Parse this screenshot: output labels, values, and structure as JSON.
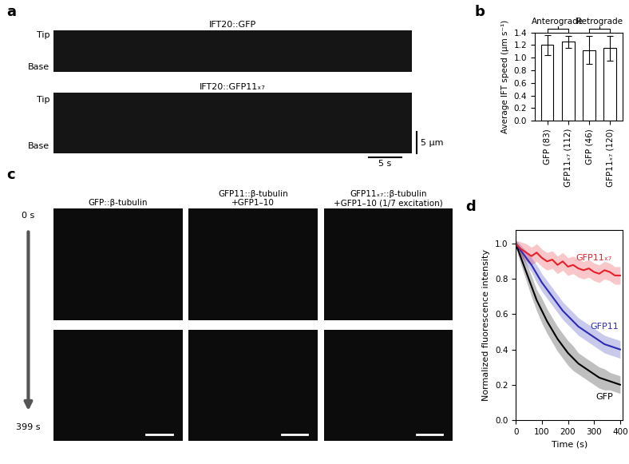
{
  "panel_labels": [
    "a",
    "b",
    "c",
    "d"
  ],
  "kymographs": {
    "rows": [
      "IFT20::GFP",
      "IFT20::GFP11ₓ₇"
    ],
    "tip_label": "Tip",
    "base_label": "Base",
    "scale_bar_length": "5 µm",
    "scale_bar_time": "5 s"
  },
  "photobleaching_images": {
    "columns": [
      "GFP::β-tubulin",
      "GFP11::β-tubulin\n+GFP1–10",
      "GFP11ₓ₇::β-tubulin\n+GFP1–10 (1/7 excitation)"
    ],
    "times": [
      "0 s",
      "399 s"
    ]
  },
  "chart_data": [
    {
      "type": "bar",
      "categories": [
        "GFP (83)",
        "GFP11ₓ₇ (112)",
        "GFP (46)",
        "GFP11ₓ₇ (120)"
      ],
      "values": [
        1.2,
        1.25,
        1.12,
        1.15
      ],
      "errors": [
        0.16,
        0.1,
        0.22,
        0.2
      ],
      "annotations": [
        "Anterograde",
        "Retrograde"
      ],
      "y_label": "Average IFT speed (µm s⁻¹)",
      "color": "#ffffff",
      "ylim": [
        0,
        1.4
      ],
      "yticks": [
        {
          "value": 0,
          "label": "0.0"
        },
        {
          "value": 0.2,
          "label": "0.2"
        },
        {
          "value": 0.4,
          "label": "0.4"
        },
        {
          "value": 0.6,
          "label": "0.6"
        },
        {
          "value": 0.8,
          "label": "0.8"
        },
        {
          "value": 1.0,
          "label": "1.0"
        },
        {
          "value": 1.2,
          "label": "1.2"
        },
        {
          "value": 1.4,
          "label": "1.4"
        }
      ]
    },
    {
      "type": "line",
      "x": [
        0,
        20,
        40,
        60,
        80,
        100,
        120,
        140,
        160,
        180,
        200,
        220,
        240,
        260,
        280,
        300,
        320,
        340,
        360,
        380,
        400
      ],
      "series": [
        {
          "name": "GFP",
          "color": "#000000",
          "values": [
            1.0,
            0.92,
            0.84,
            0.76,
            0.68,
            0.62,
            0.56,
            0.51,
            0.46,
            0.42,
            0.38,
            0.35,
            0.32,
            0.3,
            0.28,
            0.26,
            0.24,
            0.23,
            0.22,
            0.21,
            0.2
          ],
          "error": [
            0.02,
            0.04,
            0.05,
            0.06,
            0.06,
            0.07,
            0.07,
            0.07,
            0.07,
            0.07,
            0.07,
            0.07,
            0.06,
            0.06,
            0.06,
            0.06,
            0.06,
            0.06,
            0.05,
            0.05,
            0.05
          ]
        },
        {
          "name": "GFP11",
          "color": "#2b2bb5",
          "values": [
            1.0,
            0.96,
            0.92,
            0.88,
            0.83,
            0.78,
            0.74,
            0.7,
            0.66,
            0.62,
            0.59,
            0.56,
            0.53,
            0.51,
            0.49,
            0.47,
            0.45,
            0.43,
            0.42,
            0.41,
            0.4
          ],
          "error": [
            0.02,
            0.03,
            0.04,
            0.04,
            0.05,
            0.05,
            0.05,
            0.05,
            0.05,
            0.05,
            0.05,
            0.05,
            0.05,
            0.05,
            0.05,
            0.05,
            0.05,
            0.05,
            0.05,
            0.05,
            0.05
          ]
        },
        {
          "name": "GFP11ₓ₇",
          "color": "#e8202a",
          "values": [
            1.0,
            0.97,
            0.95,
            0.93,
            0.95,
            0.92,
            0.9,
            0.91,
            0.88,
            0.9,
            0.87,
            0.88,
            0.86,
            0.85,
            0.86,
            0.84,
            0.83,
            0.85,
            0.84,
            0.82,
            0.82
          ],
          "error": [
            0.02,
            0.04,
            0.05,
            0.05,
            0.05,
            0.05,
            0.05,
            0.05,
            0.05,
            0.05,
            0.05,
            0.05,
            0.05,
            0.05,
            0.05,
            0.05,
            0.05,
            0.05,
            0.05,
            0.05,
            0.05
          ]
        }
      ],
      "x_label": "Time (s)",
      "y_label": "Normalized fluorescence intensity",
      "xlim": [
        0,
        410
      ],
      "ylim": [
        0,
        1.08
      ],
      "xticks": [
        0,
        100,
        200,
        300,
        400
      ],
      "yticks": [
        {
          "value": 0,
          "label": "0.0"
        },
        {
          "value": 0.2,
          "label": "0.2"
        },
        {
          "value": 0.4,
          "label": "0.4"
        },
        {
          "value": 0.6,
          "label": "0.6"
        },
        {
          "value": 0.8,
          "label": "0.8"
        },
        {
          "value": 1.0,
          "label": "1.0"
        }
      ]
    }
  ]
}
